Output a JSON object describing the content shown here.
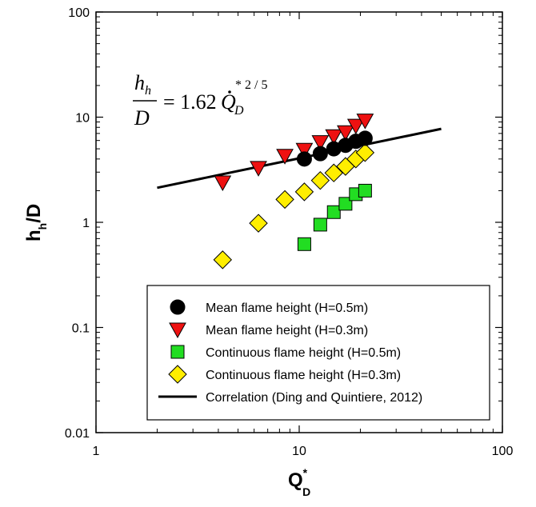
{
  "chart_data": {
    "type": "scatter",
    "xscale": "log",
    "yscale": "log",
    "xlim": [
      1,
      100
    ],
    "ylim": [
      0.01,
      100
    ],
    "xticks": [
      1,
      10,
      100
    ],
    "xtick_labels": [
      "1",
      "10",
      "100"
    ],
    "yticks": [
      0.01,
      0.1,
      1,
      10,
      100
    ],
    "ytick_labels": [
      "0.01",
      "0.1",
      "1",
      "10",
      "100"
    ],
    "xlabel": "Q",
    "xlabel_sup": "*",
    "xlabel_sub": "D",
    "ylabel": "h",
    "ylabel_sub": "h",
    "ylabel_tail": "/D",
    "legend_position": "bottom-right",
    "equation": {
      "lhs_num": "h",
      "lhs_num_sub": "h",
      "lhs_den": "D",
      "rhs_coef": "= 1.62",
      "rhs_var": "Q",
      "rhs_var_sub": "D",
      "rhs_exp": "* 2 / 5"
    },
    "series": [
      {
        "name": "Mean flame height (H=0.5m)",
        "marker": "circle",
        "color": "#000000",
        "x": [
          10.6,
          12.7,
          14.8,
          16.9,
          19.0,
          21.1
        ],
        "y": [
          4.0,
          4.5,
          5.0,
          5.4,
          5.9,
          6.3
        ]
      },
      {
        "name": "Mean flame height (H=0.3m)",
        "marker": "triangle-down",
        "color": "#ee1111",
        "x": [
          4.2,
          6.3,
          8.5,
          10.6,
          12.7,
          14.8,
          16.9,
          19.0,
          21.1
        ],
        "y": [
          2.4,
          3.3,
          4.3,
          4.9,
          5.8,
          6.6,
          7.2,
          8.3,
          9.3
        ]
      },
      {
        "name": "Continuous flame height (H=0.5m)",
        "marker": "square",
        "color": "#22dd22",
        "x": [
          10.6,
          12.7,
          14.8,
          16.9,
          19.0,
          21.1
        ],
        "y": [
          0.62,
          0.95,
          1.25,
          1.5,
          1.85,
          2.0
        ]
      },
      {
        "name": "Continuous flame height (H=0.3m)",
        "marker": "diamond",
        "color": "#ffee00",
        "x": [
          4.2,
          6.3,
          8.5,
          10.6,
          12.7,
          14.8,
          16.9,
          19.0,
          21.1
        ],
        "y": [
          0.44,
          0.98,
          1.65,
          1.95,
          2.5,
          2.95,
          3.4,
          4.0,
          4.6
        ]
      },
      {
        "name": "Correlation (Ding and Quintiere, 2012)",
        "marker": "line",
        "color": "#000000",
        "x": [
          2,
          50
        ],
        "y": [
          2.13,
          7.74
        ]
      }
    ]
  }
}
